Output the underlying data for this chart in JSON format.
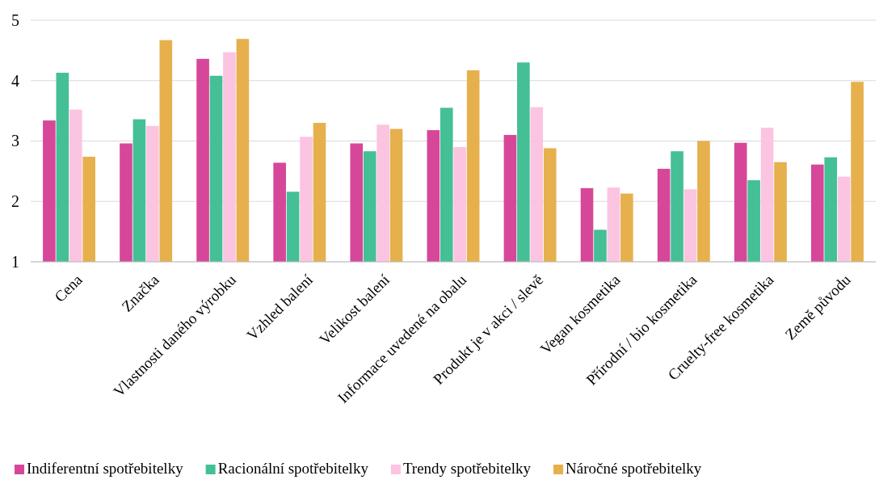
{
  "chart_data": {
    "type": "bar",
    "categories": [
      "Cena",
      "Značka",
      "Vlastnosti daného výrobku",
      "Vzhled balení",
      "Velikost balení",
      "Informace uvedené na obalu",
      "Produkt je v akci / slevě",
      "Vegan kosmetika",
      "Přírodní / bio kosmetika",
      "Cruelty-free kosmetika",
      "Země původu"
    ],
    "series": [
      {
        "name": "Indiferentní spotřebitelky",
        "color": "#d6479a",
        "values": [
          3.34,
          2.96,
          4.36,
          2.64,
          2.96,
          3.18,
          3.1,
          2.22,
          2.54,
          2.97,
          2.61
        ]
      },
      {
        "name": "Racionální spotřebitelky",
        "color": "#45bf95",
        "values": [
          4.13,
          3.36,
          4.08,
          2.16,
          2.83,
          3.55,
          4.3,
          1.53,
          2.83,
          2.35,
          2.73
        ]
      },
      {
        "name": "Trendy spotřebitelky",
        "color": "#fbc4e0",
        "values": [
          3.52,
          3.25,
          4.47,
          3.07,
          3.27,
          2.9,
          3.56,
          2.23,
          2.2,
          3.22,
          2.41
        ]
      },
      {
        "name": "Náročné spotřebitelky",
        "color": "#e6b04d",
        "values": [
          2.74,
          4.67,
          4.69,
          3.3,
          3.2,
          4.17,
          2.88,
          2.13,
          3.0,
          2.65,
          3.98
        ]
      }
    ],
    "ylim": [
      1,
      5
    ],
    "yticks": [
      1,
      2,
      3,
      4,
      5
    ],
    "grid": "y",
    "legend": "bottom"
  }
}
